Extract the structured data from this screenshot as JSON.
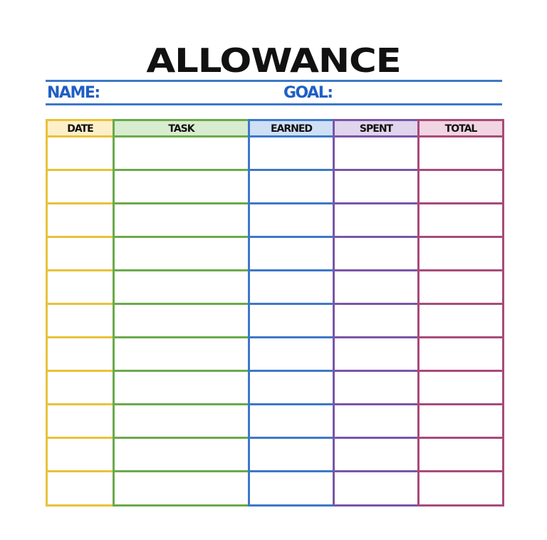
{
  "title": "ALLOWANCE",
  "name_label": "NAME:",
  "goal_label": "GOAL:",
  "accent_color": "#3d78c9",
  "row_count": 11,
  "columns": [
    {
      "label": "DATE",
      "color": "#e8c23a",
      "fill": "#fdf0c8"
    },
    {
      "label": "TASK",
      "color": "#6aaa4a",
      "fill": "#d8ecd0"
    },
    {
      "label": "EARNED",
      "color": "#3d78c9",
      "fill": "#cfe0f5"
    },
    {
      "label": "SPENT",
      "color": "#7a55a8",
      "fill": "#e0d5ec"
    },
    {
      "label": "TOTAL",
      "color": "#a84a7a",
      "fill": "#f2d5e2"
    }
  ]
}
